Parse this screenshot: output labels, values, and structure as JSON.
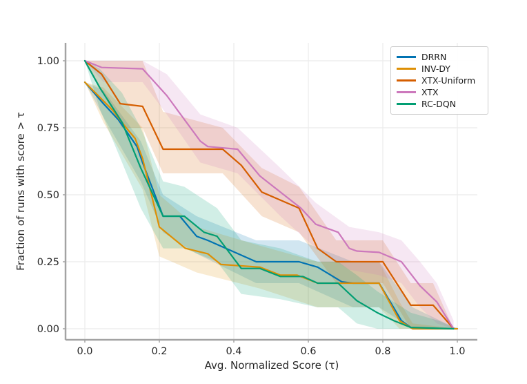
{
  "figure": {
    "background": "#ffffff",
    "grid_color": "#ebebeb",
    "spine_color": "#a3a3a3",
    "tick_label_color": "#262626"
  },
  "chart_data": {
    "type": "line",
    "title": "",
    "xlabel": "Avg. Normalized Score (τ)",
    "ylabel": "Fraction of runs with score > τ",
    "xlim": [
      0,
      1
    ],
    "ylim": [
      0,
      1
    ],
    "grid": true,
    "legend_position": "upper right",
    "x_ticks": [
      "0.0",
      "0.2",
      "0.4",
      "0.6",
      "0.8",
      "1.0"
    ],
    "y_ticks": [
      "0.00",
      "0.25",
      "0.50",
      "0.75",
      "1.00"
    ],
    "series": [
      {
        "name": "DRRN",
        "color": "#0173b2",
        "points": [
          [
            0,
            0.92
          ],
          [
            0.05,
            0.84
          ],
          [
            0.09,
            0.78
          ],
          [
            0.12,
            0.72
          ],
          [
            0.14,
            0.68
          ],
          [
            0.155,
            0.62
          ],
          [
            0.21,
            0.42
          ],
          [
            0.255,
            0.42
          ],
          [
            0.3,
            0.345
          ],
          [
            0.33,
            0.33
          ],
          [
            0.46,
            0.25
          ],
          [
            0.575,
            0.25
          ],
          [
            0.625,
            0.23
          ],
          [
            0.69,
            0.175
          ],
          [
            0.72,
            0.17
          ],
          [
            0.79,
            0.17
          ],
          [
            0.85,
            0.03
          ],
          [
            0.88,
            0
          ],
          [
            1.0,
            0
          ]
        ],
        "band": [
          [
            0,
            0.92,
            0.92
          ],
          [
            0.05,
            0.79,
            0.89
          ],
          [
            0.15,
            0.55,
            0.7
          ],
          [
            0.21,
            0.36,
            0.5
          ],
          [
            0.3,
            0.28,
            0.42
          ],
          [
            0.46,
            0.17,
            0.33
          ],
          [
            0.575,
            0.17,
            0.33
          ],
          [
            0.72,
            0.08,
            0.25
          ],
          [
            0.79,
            0.08,
            0.25
          ],
          [
            0.88,
            0,
            0.08
          ],
          [
            1,
            0,
            0
          ]
        ]
      },
      {
        "name": "INV-DY",
        "color": "#de8f05",
        "points": [
          [
            0,
            0.92
          ],
          [
            0.05,
            0.85
          ],
          [
            0.075,
            0.815
          ],
          [
            0.105,
            0.76
          ],
          [
            0.135,
            0.71
          ],
          [
            0.155,
            0.635
          ],
          [
            0.2,
            0.38
          ],
          [
            0.27,
            0.3
          ],
          [
            0.33,
            0.28
          ],
          [
            0.365,
            0.24
          ],
          [
            0.47,
            0.23
          ],
          [
            0.525,
            0.2
          ],
          [
            0.57,
            0.2
          ],
          [
            0.625,
            0.17
          ],
          [
            0.79,
            0.17
          ],
          [
            0.845,
            0.03
          ],
          [
            0.88,
            0
          ],
          [
            1.0,
            0
          ]
        ],
        "band": [
          [
            0,
            0.92,
            0.92
          ],
          [
            0.05,
            0.77,
            0.9
          ],
          [
            0.155,
            0.52,
            0.75
          ],
          [
            0.2,
            0.27,
            0.5
          ],
          [
            0.3,
            0.21,
            0.38
          ],
          [
            0.47,
            0.15,
            0.31
          ],
          [
            0.625,
            0.08,
            0.25
          ],
          [
            0.79,
            0.08,
            0.25
          ],
          [
            0.845,
            0,
            0.1
          ],
          [
            0.88,
            0,
            0.02
          ],
          [
            1,
            0,
            0
          ]
        ]
      },
      {
        "name": "XTX-Uniform",
        "color": "#d55e00",
        "points": [
          [
            0,
            1.0
          ],
          [
            0.045,
            0.95
          ],
          [
            0.095,
            0.84
          ],
          [
            0.155,
            0.83
          ],
          [
            0.21,
            0.67
          ],
          [
            0.37,
            0.67
          ],
          [
            0.42,
            0.61
          ],
          [
            0.475,
            0.51
          ],
          [
            0.525,
            0.48
          ],
          [
            0.575,
            0.45
          ],
          [
            0.625,
            0.3
          ],
          [
            0.675,
            0.25
          ],
          [
            0.8,
            0.25
          ],
          [
            0.875,
            0.088
          ],
          [
            0.935,
            0.088
          ],
          [
            0.99,
            0
          ]
        ],
        "band": [
          [
            0,
            1,
            1
          ],
          [
            0.1,
            0.75,
            1.0
          ],
          [
            0.155,
            0.75,
            1.0
          ],
          [
            0.21,
            0.58,
            0.81
          ],
          [
            0.37,
            0.58,
            0.75
          ],
          [
            0.475,
            0.42,
            0.6
          ],
          [
            0.575,
            0.36,
            0.53
          ],
          [
            0.675,
            0.17,
            0.33
          ],
          [
            0.8,
            0.17,
            0.33
          ],
          [
            0.875,
            0.0,
            0.17
          ],
          [
            0.935,
            0,
            0.17
          ],
          [
            0.99,
            0,
            0
          ]
        ]
      },
      {
        "name": "XTX",
        "color": "#cc78bc",
        "points": [
          [
            0,
            1.0
          ],
          [
            0.045,
            0.975
          ],
          [
            0.155,
            0.97
          ],
          [
            0.22,
            0.87
          ],
          [
            0.31,
            0.7
          ],
          [
            0.33,
            0.68
          ],
          [
            0.41,
            0.67
          ],
          [
            0.47,
            0.57
          ],
          [
            0.525,
            0.51
          ],
          [
            0.58,
            0.45
          ],
          [
            0.62,
            0.39
          ],
          [
            0.68,
            0.36
          ],
          [
            0.71,
            0.3
          ],
          [
            0.73,
            0.29
          ],
          [
            0.79,
            0.285
          ],
          [
            0.85,
            0.25
          ],
          [
            0.9,
            0.16
          ],
          [
            0.945,
            0.1
          ],
          [
            0.99,
            0
          ]
        ],
        "band": [
          [
            0,
            1,
            1
          ],
          [
            0.05,
            0.92,
            1.0
          ],
          [
            0.155,
            0.92,
            1.0
          ],
          [
            0.22,
            0.8,
            0.95
          ],
          [
            0.31,
            0.62,
            0.8
          ],
          [
            0.41,
            0.58,
            0.75
          ],
          [
            0.525,
            0.42,
            0.6
          ],
          [
            0.62,
            0.3,
            0.47
          ],
          [
            0.71,
            0.22,
            0.38
          ],
          [
            0.79,
            0.2,
            0.36
          ],
          [
            0.85,
            0.17,
            0.33
          ],
          [
            0.9,
            0.08,
            0.25
          ],
          [
            0.945,
            0.02,
            0.17
          ],
          [
            0.99,
            0,
            0.03
          ]
        ]
      },
      {
        "name": "RC-DQN",
        "color": "#029e73",
        "points": [
          [
            0,
            1.0
          ],
          [
            0.04,
            0.9
          ],
          [
            0.1,
            0.77
          ],
          [
            0.15,
            0.6
          ],
          [
            0.21,
            0.42
          ],
          [
            0.267,
            0.42
          ],
          [
            0.32,
            0.36
          ],
          [
            0.355,
            0.345
          ],
          [
            0.42,
            0.225
          ],
          [
            0.47,
            0.225
          ],
          [
            0.525,
            0.195
          ],
          [
            0.585,
            0.195
          ],
          [
            0.625,
            0.17
          ],
          [
            0.68,
            0.17
          ],
          [
            0.73,
            0.105
          ],
          [
            0.785,
            0.06
          ],
          [
            0.83,
            0.03
          ],
          [
            0.875,
            0.005
          ],
          [
            0.99,
            0
          ]
        ],
        "band": [
          [
            0,
            1,
            1
          ],
          [
            0.04,
            0.82,
            0.97
          ],
          [
            0.1,
            0.62,
            0.88
          ],
          [
            0.15,
            0.45,
            0.75
          ],
          [
            0.21,
            0.3,
            0.55
          ],
          [
            0.267,
            0.3,
            0.53
          ],
          [
            0.355,
            0.25,
            0.45
          ],
          [
            0.42,
            0.13,
            0.33
          ],
          [
            0.525,
            0.11,
            0.3
          ],
          [
            0.625,
            0.08,
            0.25
          ],
          [
            0.68,
            0.08,
            0.25
          ],
          [
            0.73,
            0.02,
            0.2
          ],
          [
            0.785,
            0,
            0.14
          ],
          [
            0.83,
            0,
            0.1
          ],
          [
            0.875,
            0,
            0.06
          ],
          [
            0.95,
            0,
            0.03
          ],
          [
            1,
            0,
            0
          ]
        ]
      }
    ]
  }
}
